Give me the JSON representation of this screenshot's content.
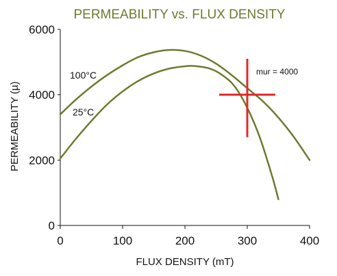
{
  "chart_data": {
    "type": "line",
    "title": "PERMEABILITY vs. FLUX DENSITY",
    "xlabel": "FLUX DENSITY (mT)",
    "ylabel": "PERMEABILITY (µ)",
    "xlim": [
      0,
      400
    ],
    "ylim": [
      0,
      6000
    ],
    "x_ticks": [
      0,
      100,
      200,
      300,
      400
    ],
    "y_ticks": [
      0,
      2000,
      4000,
      6000
    ],
    "grid": false,
    "line_color": "#6d7a2f",
    "series": [
      {
        "name": "100°C",
        "x": [
          0,
          25,
          50,
          75,
          100,
          125,
          150,
          175,
          200,
          225,
          250,
          275,
          300,
          325,
          350,
          375,
          400
        ],
        "y": [
          3400,
          3850,
          4250,
          4600,
          4900,
          5150,
          5300,
          5370,
          5340,
          5200,
          4950,
          4600,
          4200,
          3800,
          3300,
          2700,
          2000
        ]
      },
      {
        "name": "25°C",
        "x": [
          0,
          25,
          50,
          75,
          100,
          125,
          150,
          175,
          200,
          215,
          240,
          260,
          280,
          300,
          320,
          340,
          350
        ],
        "y": [
          2050,
          2650,
          3200,
          3700,
          4100,
          4420,
          4650,
          4800,
          4870,
          4880,
          4800,
          4600,
          4250,
          3600,
          2700,
          1500,
          800
        ]
      }
    ],
    "annotations": [
      {
        "text": "mur = 4000",
        "crosshair_color": "#e12929",
        "x": 300,
        "y": 4000,
        "h_extent": [
          255,
          345
        ],
        "v_extent": [
          2700,
          5100
        ]
      }
    ]
  }
}
